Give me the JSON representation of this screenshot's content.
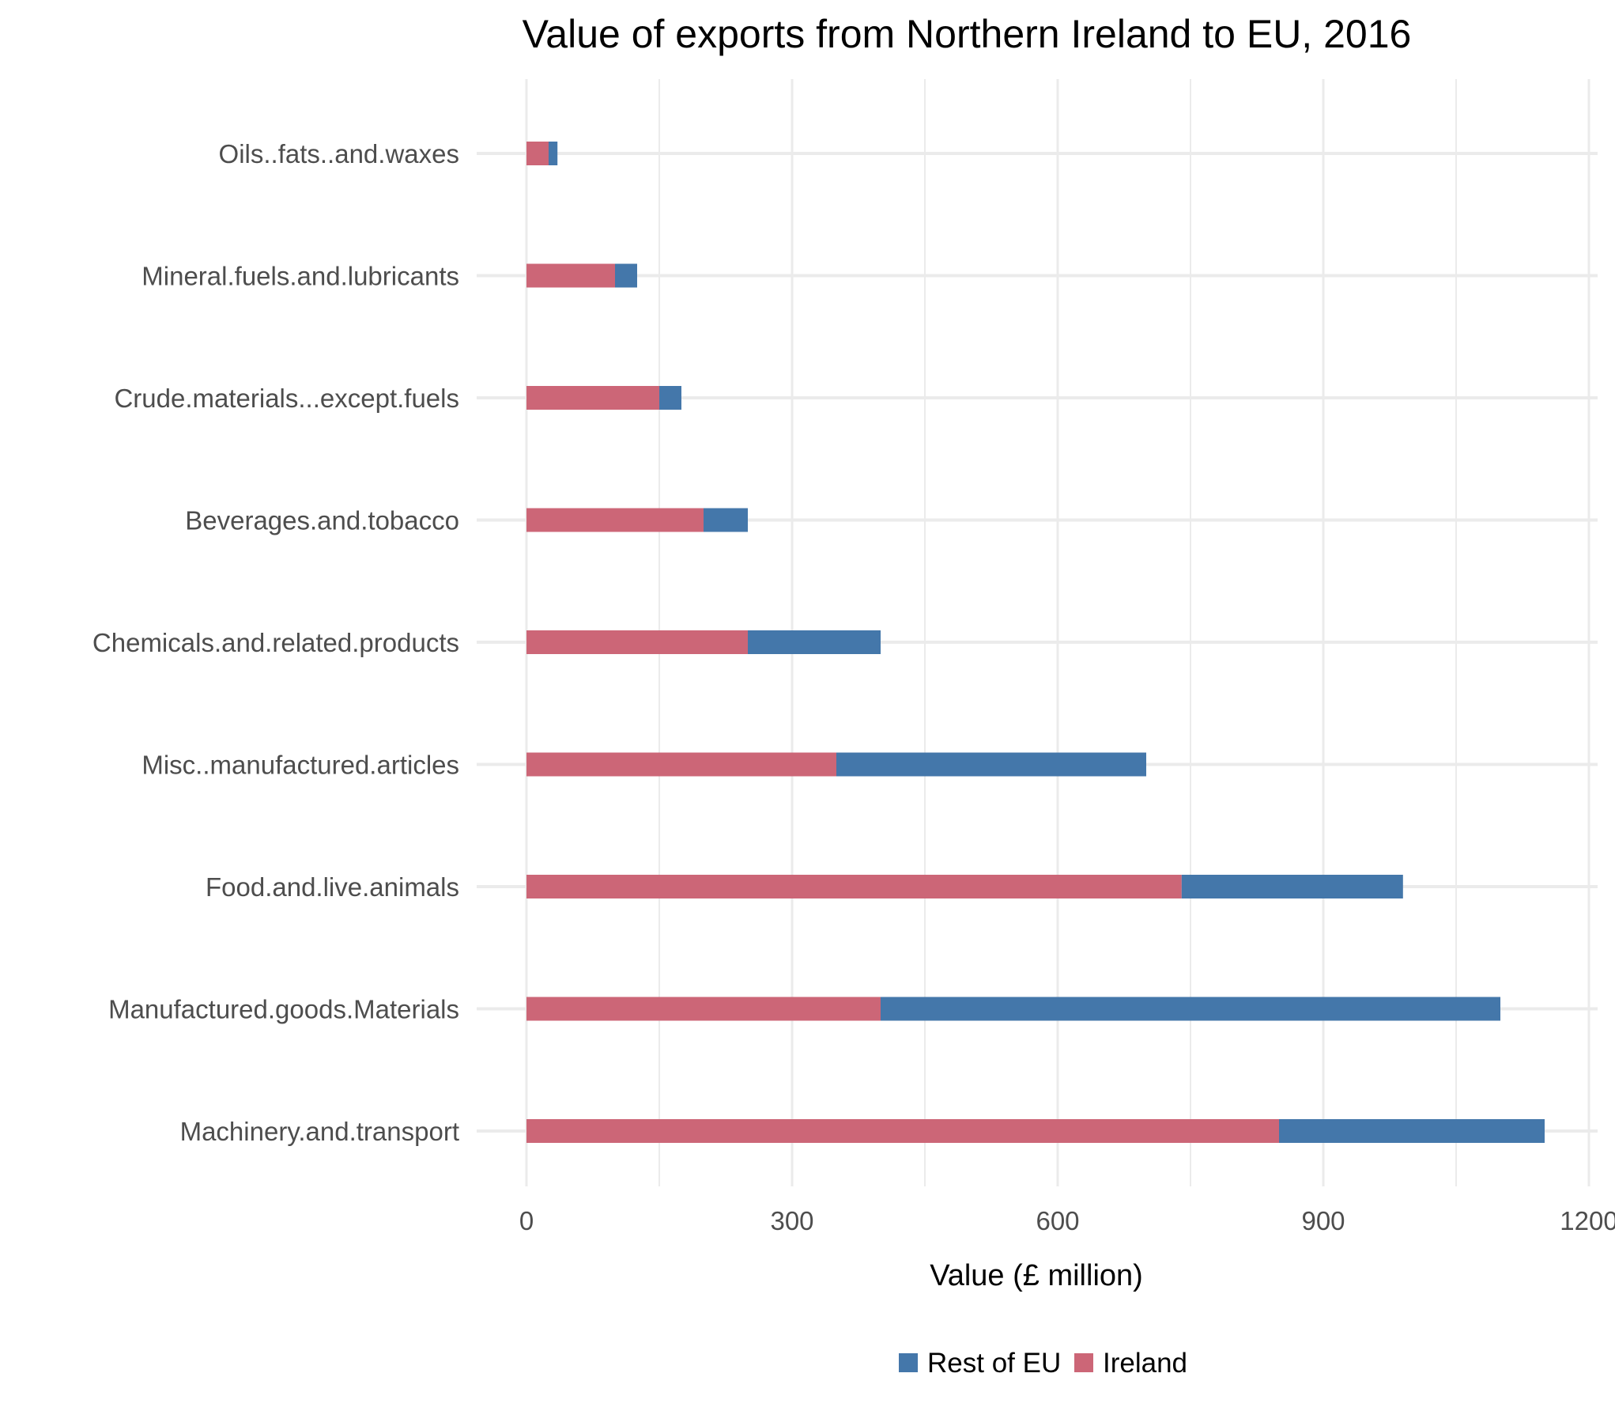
{
  "chart_data": {
    "type": "bar",
    "orientation": "horizontal",
    "stacked": true,
    "title": "Value of exports from Northern Ireland to EU, 2016",
    "xlabel": "Value (£ million)",
    "ylabel": "",
    "xlim": [
      0,
      1200
    ],
    "x_ticks": [
      "0",
      "300",
      "600",
      "900",
      "1200"
    ],
    "grid": true,
    "legend_position": "bottom",
    "categories": [
      "Oils..fats..and.waxes",
      "Mineral.fuels.and.lubricants",
      "Crude.materials...except.fuels",
      "Beverages.and.tobacco",
      "Chemicals.and.related.products",
      "Misc..manufactured.articles",
      "Food.and.live.animals",
      "Manufactured.goods.Materials",
      "Machinery.and.transport"
    ],
    "series": [
      {
        "name": "Ireland",
        "color": "#cc6677",
        "values": [
          25,
          100,
          150,
          200,
          250,
          350,
          740,
          400,
          850
        ]
      },
      {
        "name": "Rest of EU",
        "color": "#4477aa",
        "values": [
          10,
          25,
          25,
          50,
          150,
          350,
          250,
          700,
          300
        ]
      }
    ],
    "legend_order": [
      "Rest of EU",
      "Ireland"
    ]
  }
}
